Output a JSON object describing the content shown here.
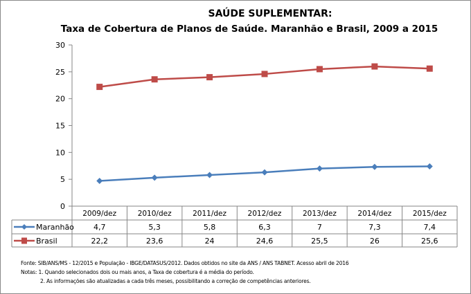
{
  "chart_data": {
    "type": "line",
    "title": "SAÚDE SUPLEMENTAR:",
    "subtitle": "Taxa de Cobertura de Planos de Saúde. Maranhão e Brasil, 2009 a 2015",
    "categories": [
      "2009/dez",
      "2010/dez",
      "2011/dez",
      "2012/dez",
      "2013/dez",
      "2014/dez",
      "2015/dez"
    ],
    "series": [
      {
        "name": "Maranhão",
        "values": [
          4.7,
          5.3,
          5.8,
          6.3,
          7,
          7.3,
          7.4
        ],
        "labels": [
          "4,7",
          "5,3",
          "5,8",
          "6,3",
          "7",
          "7,3",
          "7,4"
        ],
        "color": "#4a7ebb",
        "marker": "diamond"
      },
      {
        "name": "Brasil",
        "values": [
          22.2,
          23.6,
          24,
          24.6,
          25.5,
          26,
          25.6
        ],
        "labels": [
          "22,2",
          "23,6",
          "24",
          "24,6",
          "25,5",
          "26",
          "25,6"
        ],
        "color": "#be4b48",
        "marker": "square"
      }
    ],
    "yticks": [
      "0",
      "5",
      "10",
      "15",
      "20",
      "25",
      "30"
    ],
    "ylim": [
      0,
      30
    ],
    "grid": false,
    "legend": "data-table"
  },
  "notes": {
    "source": "Fonte: SIB/ANS/MS - 12/2015 e População - IBGE/DATASUS/2012. Dados obtidos no site da ANS / ANS TABNET. Acesso abril de 2016",
    "note1": "Notas: 1. Quando selecionados dois ou mais anos, a Taxa de cobertura é a média do período.",
    "note2": "2. As informações são atualizadas a cada três meses, possibilitando a correção de competências anteriores."
  }
}
